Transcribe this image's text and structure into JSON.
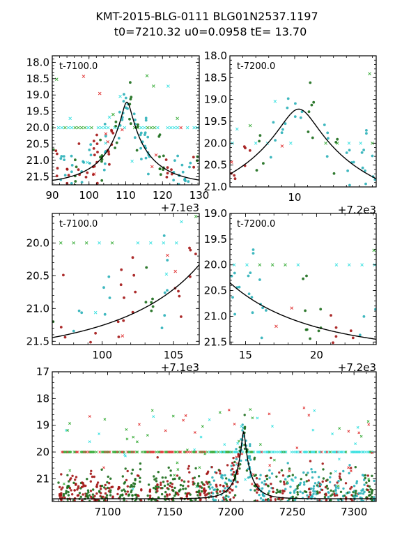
{
  "title": {
    "line1": "KMT-2015-BLG-0111 BLG01N2537.1197",
    "line2": "t0=7210.32 u0=0.0958 tE=  13.70"
  },
  "model": {
    "t0": 7210.32,
    "u0": 0.0958,
    "tE": 13.7,
    "peak_mag": 19.22,
    "base_mag": 21.75
  },
  "series_colors": {
    "dark_green": "#1a6b1a",
    "dark_red": "#a31515",
    "cyan": "#2ab0b8",
    "light_green_x": "#33aa33",
    "light_red_x": "#e03030",
    "light_cyan_x": "#33e0e0",
    "model_line": "#000000"
  },
  "chart_data": [
    {
      "id": "panel-top-left",
      "type": "scatter",
      "annotation": "t-7100.0",
      "offset_label": "+7.1e3",
      "xlim": [
        90,
        130
      ],
      "ylim": [
        21.75,
        17.8
      ],
      "xticks": [
        "90",
        "100",
        "110",
        "120",
        "130"
      ],
      "xtick_values": [
        90,
        100,
        110,
        120,
        130
      ],
      "yticks": [
        "18.0",
        "18.5",
        "19.0",
        "19.5",
        "20.0",
        "20.5",
        "21.0",
        "21.5"
      ],
      "ytick_values": [
        18.0,
        18.5,
        19.0,
        19.5,
        20.0,
        20.5,
        21.0,
        21.5
      ],
      "x_offset": 7100,
      "features": {
        "peak_x": 110.3,
        "peak_y": 18.9,
        "upper_limit_row_y": 20.0
      }
    },
    {
      "id": "panel-top-right",
      "type": "scatter",
      "annotation": "t-7200.0",
      "offset_label": "+7.2e3",
      "xlim": [
        5,
        16.3
      ],
      "ylim": [
        21.0,
        18.0
      ],
      "xticks": [
        "10"
      ],
      "xtick_values": [
        10
      ],
      "yticks": [
        "18.0",
        "18.5",
        "19.0",
        "19.5",
        "20.0",
        "20.5",
        "21.0"
      ],
      "ytick_values": [
        18.0,
        18.5,
        19.0,
        19.5,
        20.0,
        20.5,
        21.0
      ],
      "x_offset": 7200,
      "features": {
        "peak_x": 10.3,
        "peak_y": 19.0
      }
    },
    {
      "id": "panel-mid-left",
      "type": "scatter",
      "annotation": "t-7100.0",
      "offset_label": "+7.1e3",
      "xlim": [
        96.5,
        106.8
      ],
      "ylim": [
        21.55,
        19.55
      ],
      "xticks": [
        "100",
        "105"
      ],
      "xtick_values": [
        100,
        105
      ],
      "yticks": [
        "20.0",
        "20.5",
        "21.0",
        "21.5"
      ],
      "ytick_values": [
        20.0,
        20.5,
        21.0,
        21.5
      ],
      "x_offset": 7100
    },
    {
      "id": "panel-mid-right",
      "type": "scatter",
      "annotation": "t-7200.0",
      "offset_label": "+7.2e3",
      "xlim": [
        13.9,
        24.2
      ],
      "ylim": [
        21.55,
        19.0
      ],
      "xticks": [
        "15",
        "20"
      ],
      "xtick_values": [
        15,
        20
      ],
      "yticks": [
        "19.0",
        "19.5",
        "20.0",
        "20.5",
        "21.0",
        "21.5"
      ],
      "ytick_values": [
        19.0,
        19.5,
        20.0,
        20.5,
        21.0,
        21.5
      ],
      "x_offset": 7200
    },
    {
      "id": "panel-bottom",
      "type": "scatter",
      "annotation": "",
      "offset_label": "",
      "xlim": [
        7055,
        7318
      ],
      "ylim": [
        21.85,
        17.0
      ],
      "xticks": [
        "7100",
        "7150",
        "7200",
        "7250",
        "7300"
      ],
      "xtick_values": [
        7100,
        7150,
        7200,
        7250,
        7300
      ],
      "yticks": [
        "17",
        "18",
        "19",
        "20",
        "21"
      ],
      "ytick_values": [
        17,
        18,
        19,
        20,
        21
      ],
      "x_offset": 0
    }
  ]
}
